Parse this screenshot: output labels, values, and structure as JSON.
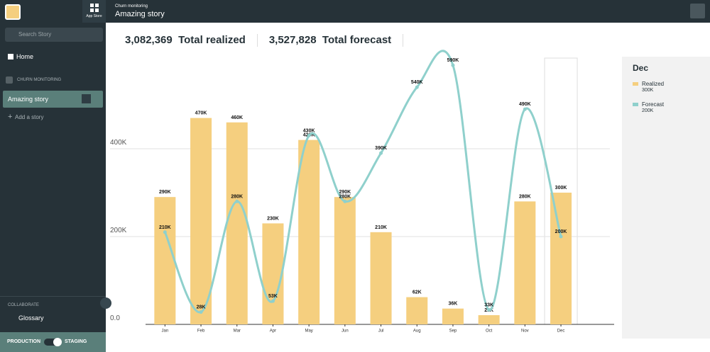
{
  "topbar": {
    "app_store": "App Store",
    "breadcrumb": "Churn monitoring",
    "title": "Amazing story"
  },
  "sidebar": {
    "search_placeholder": "Search Story",
    "home": "Home",
    "section": "CHURN MONITORING",
    "active_story": "Amazing story",
    "add_story": "Add a story",
    "collaborate": "COLLABORATE",
    "glossary": "Glossary",
    "production": "PRODUCTION",
    "staging": "STAGING"
  },
  "summary": [
    {
      "value": "3,082,369",
      "label": "Total realized"
    },
    {
      "value": "3,527,828",
      "label": "Total forecast"
    }
  ],
  "chart_data": {
    "type": "bar",
    "categories": [
      "Jan",
      "Feb",
      "Mar",
      "Apr",
      "May",
      "Jun",
      "Jul",
      "Aug",
      "Sep",
      "Oct",
      "Nov",
      "Dec"
    ],
    "series": [
      {
        "name": "Realized",
        "type": "bar",
        "color": "#f5cf7f",
        "values": [
          290000,
          470000,
          460000,
          230000,
          420000,
          290000,
          210000,
          62000,
          36000,
          21000,
          280000,
          300000
        ],
        "value_labels": [
          "290K",
          "470K",
          "460K",
          "230K",
          "420K",
          "290K",
          "210K",
          "62K",
          "36K",
          "21K",
          "280K",
          "300K"
        ]
      },
      {
        "name": "Forecast",
        "type": "line",
        "color": "#8fd0cc",
        "values": [
          210000,
          28000,
          280000,
          53000,
          430000,
          280000,
          390000,
          540000,
          590000,
          33000,
          490000,
          200000
        ],
        "value_labels": [
          "210K",
          "28K",
          "280K",
          "53K",
          "430K",
          "280K",
          "390K",
          "540K",
          "590K",
          "33K",
          "490K",
          "200K"
        ]
      }
    ],
    "ylim": [
      0,
      600000
    ],
    "yticks": [
      {
        "value": 0,
        "label": "0.0"
      },
      {
        "value": 200000,
        "label": "200K"
      },
      {
        "value": 400000,
        "label": "400K"
      }
    ],
    "grid": true,
    "selected": 11
  }
}
